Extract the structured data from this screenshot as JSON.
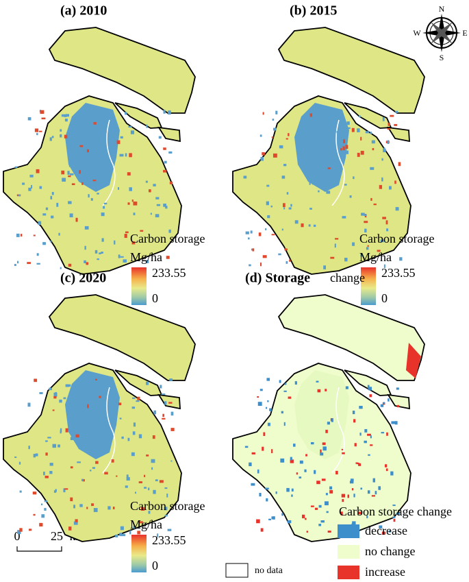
{
  "panels": [
    {
      "title": "(a) 2010",
      "legend": {
        "title": "Carbon storage",
        "unit": "Mg/ha",
        "max": 233.55,
        "min": 0
      }
    },
    {
      "title": "(b) 2015",
      "legend": {
        "title": "Carbon storage",
        "unit": "Mg/ha",
        "max": 233.55,
        "min": 0
      }
    },
    {
      "title": "(c) 2020",
      "legend": {
        "title": "Carbon storage",
        "unit": "Mg/ha",
        "max": 233.55,
        "min": 0
      }
    },
    {
      "title_bold": "(d) Storage",
      "title_rest": "change",
      "legend": {
        "title": "Carbon storage change",
        "items": [
          "decrease",
          "no change",
          "increase"
        ]
      }
    }
  ],
  "no_data": "no data",
  "compass": {
    "n": "N",
    "s": "S",
    "e": "E",
    "w": "W"
  },
  "scale_bar": {
    "start": 0,
    "end": 25,
    "unit": "km"
  }
}
